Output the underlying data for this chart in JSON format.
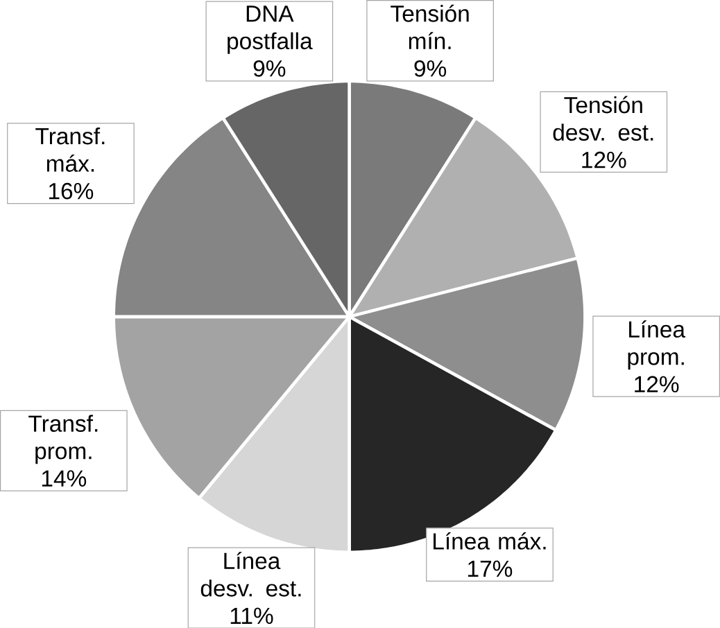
{
  "chart_data": {
    "type": "pie",
    "categories": [
      "Tensión mín.",
      "Tensión desv. est.",
      "Línea prom.",
      "Línea máx.",
      "Línea desv. est.",
      "Transf. prom.",
      "Transf. máx.",
      "DNA postfalla"
    ],
    "values": [
      9,
      12,
      12,
      17,
      11,
      14,
      16,
      9
    ],
    "value_labels": [
      "9%",
      "12%",
      "12%",
      "17%",
      "11%",
      "14%",
      "16%",
      "9%"
    ],
    "colors": [
      "#7a7a7a",
      "#b0b0b0",
      "#8e8e8e",
      "#262626",
      "#d6d6d6",
      "#a3a3a3",
      "#858585",
      "#666666"
    ]
  }
}
